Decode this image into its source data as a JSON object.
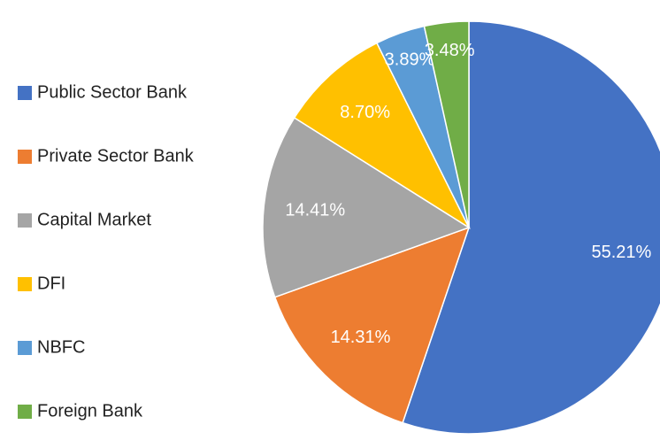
{
  "chart_data": {
    "type": "pie",
    "categories": [
      "Public Sector Bank",
      "Private Sector Bank",
      "Capital Market",
      "DFI",
      "NBFC",
      "Foreign Bank"
    ],
    "values": [
      55.21,
      14.31,
      14.41,
      8.7,
      3.89,
      3.48
    ],
    "value_labels": [
      "55.21%",
      "14.31%",
      "14.41%",
      "8.70%",
      "3.89%",
      "3.48%"
    ],
    "colors": [
      "#4472c4",
      "#ed7d31",
      "#a5a5a5",
      "#ffc000",
      "#5b9bd5",
      "#70ad47"
    ],
    "legend": "left"
  }
}
